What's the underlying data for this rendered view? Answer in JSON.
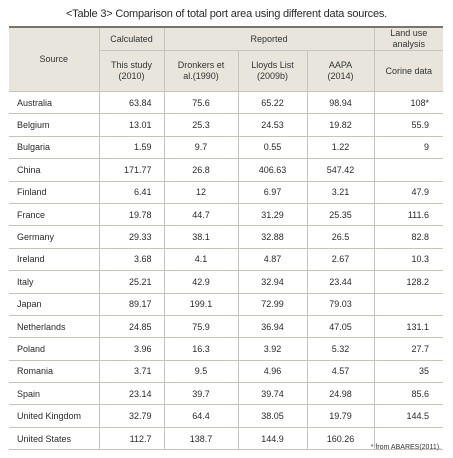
{
  "title": "<Table 3> Comparison of total port area using different data sources.",
  "headers": {
    "source": "Source",
    "calculated": "Calculated",
    "reported": "Reported",
    "land_use": "Land use analysis",
    "this_study": [
      "This study",
      "(2010)"
    ],
    "dronkers": [
      "Dronkers et",
      "al.(1990)"
    ],
    "lloyds": [
      "Lloyds List",
      "(2009b)"
    ],
    "aapa": [
      "AAPA",
      "(2014)"
    ],
    "corine": "Corine data"
  },
  "rows": [
    {
      "source": "Australia",
      "this_study": "63.84",
      "dronkers": "75.6",
      "lloyds": "65.22",
      "aapa": "98.94",
      "corine": "108*"
    },
    {
      "source": "Belgium",
      "this_study": "13.01",
      "dronkers": "25.3",
      "lloyds": "24.53",
      "aapa": "19.82",
      "corine": "55.9"
    },
    {
      "source": "Bulgaria",
      "this_study": "1.59",
      "dronkers": "9.7",
      "lloyds": "0.55",
      "aapa": "1.22",
      "corine": "9"
    },
    {
      "source": "China",
      "this_study": "171.77",
      "dronkers": "26.8",
      "lloyds": "406.63",
      "aapa": "547.42",
      "corine": ""
    },
    {
      "source": "Finland",
      "this_study": "6.41",
      "dronkers": "12",
      "lloyds": "6.97",
      "aapa": "3.21",
      "corine": "47.9"
    },
    {
      "source": "France",
      "this_study": "19.78",
      "dronkers": "44.7",
      "lloyds": "31.29",
      "aapa": "25.35",
      "corine": "111.6"
    },
    {
      "source": "Germany",
      "this_study": "29.33",
      "dronkers": "38.1",
      "lloyds": "32.88",
      "aapa": "26.5",
      "corine": "82.8"
    },
    {
      "source": "Ireland",
      "this_study": "3.68",
      "dronkers": "4.1",
      "lloyds": "4.87",
      "aapa": "2.67",
      "corine": "10.3"
    },
    {
      "source": "Italy",
      "this_study": "25.21",
      "dronkers": "42.9",
      "lloyds": "32.94",
      "aapa": "23.44",
      "corine": "128.2"
    },
    {
      "source": "Japan",
      "this_study": "89.17",
      "dronkers": "199.1",
      "lloyds": "72.99",
      "aapa": "79.03",
      "corine": ""
    },
    {
      "source": "Netherlands",
      "this_study": "24.85",
      "dronkers": "75.9",
      "lloyds": "36.94",
      "aapa": "47.05",
      "corine": "131.1"
    },
    {
      "source": "Poland",
      "this_study": "3.96",
      "dronkers": "16.3",
      "lloyds": "3.92",
      "aapa": "5.32",
      "corine": "27.7"
    },
    {
      "source": "Romania",
      "this_study": "3.71",
      "dronkers": "9.5",
      "lloyds": "4.96",
      "aapa": "4.57",
      "corine": "35"
    },
    {
      "source": "Spain",
      "this_study": "23.14",
      "dronkers": "39.7",
      "lloyds": "39.74",
      "aapa": "24.98",
      "corine": "85.6"
    },
    {
      "source": "United Kingdom",
      "this_study": "32.79",
      "dronkers": "64.4",
      "lloyds": "38.05",
      "aapa": "19.79",
      "corine": "144.5"
    },
    {
      "source": "United States",
      "this_study": "112.7",
      "dronkers": "138.7",
      "lloyds": "144.9",
      "aapa": "160.26",
      "corine": ""
    }
  ],
  "footnote": "* from ABARES(2011)."
}
